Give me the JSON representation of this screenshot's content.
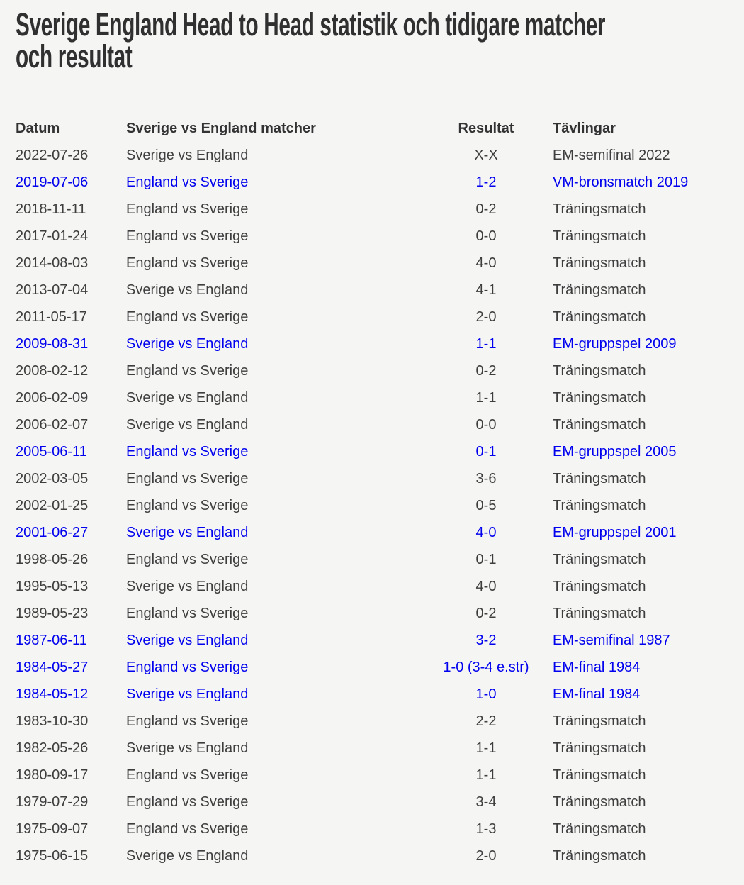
{
  "page": {
    "background_color": "#f5f5f4",
    "text_color": "#3e3e3e",
    "heading_color": "#303030",
    "link_color": "#0000ee"
  },
  "heading": {
    "line1": "Sverige England Head to Head statistik och tidigare matcher",
    "line2": "och resultat"
  },
  "table": {
    "headers": [
      "Datum",
      "Sverige vs England matcher",
      "Resultat",
      "Tävlingar"
    ],
    "rows": [
      {
        "date": "2022-07-26",
        "match": "Sverige vs England",
        "result": "X-X",
        "competition": "EM-semifinal 2022",
        "link": false
      },
      {
        "date": "2019-07-06",
        "match": "England vs Sverige",
        "result": "1-2",
        "competition": "VM-bronsmatch 2019",
        "link": true
      },
      {
        "date": "2018-11-11",
        "match": "England vs Sverige",
        "result": "0-2",
        "competition": "Träningsmatch",
        "link": false
      },
      {
        "date": "2017-01-24",
        "match": "England vs Sverige",
        "result": "0-0",
        "competition": "Träningsmatch",
        "link": false
      },
      {
        "date": "2014-08-03",
        "match": "England vs Sverige",
        "result": "4-0",
        "competition": "Träningsmatch",
        "link": false
      },
      {
        "date": "2013-07-04",
        "match": "Sverige vs England",
        "result": "4-1",
        "competition": "Träningsmatch",
        "link": false
      },
      {
        "date": "2011-05-17",
        "match": "England vs Sverige",
        "result": "2-0",
        "competition": "Träningsmatch",
        "link": false
      },
      {
        "date": "2009-08-31",
        "match": "Sverige vs England",
        "result": "1-1",
        "competition": "EM-gruppspel 2009",
        "link": true
      },
      {
        "date": "2008-02-12",
        "match": "England vs Sverige",
        "result": "0-2",
        "competition": "Träningsmatch",
        "link": false
      },
      {
        "date": "2006-02-09",
        "match": "Sverige vs England",
        "result": "1-1",
        "competition": "Träningsmatch",
        "link": false
      },
      {
        "date": "2006-02-07",
        "match": "Sverige vs England",
        "result": "0-0",
        "competition": "Träningsmatch",
        "link": false
      },
      {
        "date": "2005-06-11",
        "match": "England vs Sverige",
        "result": "0-1",
        "competition": "EM-gruppspel 2005",
        "link": true
      },
      {
        "date": "2002-03-05",
        "match": "England vs Sverige",
        "result": "3-6",
        "competition": "Träningsmatch",
        "link": false
      },
      {
        "date": "2002-01-25",
        "match": "England vs Sverige",
        "result": "0-5",
        "competition": "Träningsmatch",
        "link": false
      },
      {
        "date": "2001-06-27",
        "match": "Sverige vs England",
        "result": "4-0",
        "competition": "EM-gruppspel 2001",
        "link": true
      },
      {
        "date": "1998-05-26",
        "match": "England vs Sverige",
        "result": "0-1",
        "competition": "Träningsmatch",
        "link": false
      },
      {
        "date": "1995-05-13",
        "match": "Sverige vs England",
        "result": "4-0",
        "competition": "Träningsmatch",
        "link": false
      },
      {
        "date": "1989-05-23",
        "match": "England vs Sverige",
        "result": "0-2",
        "competition": "Träningsmatch",
        "link": false
      },
      {
        "date": "1987-06-11",
        "match": "Sverige vs England",
        "result": "3-2",
        "competition": "EM-semifinal 1987",
        "link": true
      },
      {
        "date": "1984-05-27",
        "match": "England vs Sverige",
        "result": "1-0 (3-4 e.str)",
        "competition": "EM-final 1984",
        "link": true
      },
      {
        "date": "1984-05-12",
        "match": "Sverige vs England",
        "result": "1-0",
        "competition": "EM-final 1984",
        "link": true
      },
      {
        "date": "1983-10-30",
        "match": "England vs Sverige",
        "result": "2-2",
        "competition": "Träningsmatch",
        "link": false
      },
      {
        "date": "1982-05-26",
        "match": "Sverige vs England",
        "result": "1-1",
        "competition": "Träningsmatch",
        "link": false
      },
      {
        "date": "1980-09-17",
        "match": "England vs Sverige",
        "result": "1-1",
        "competition": "Träningsmatch",
        "link": false
      },
      {
        "date": "1979-07-29",
        "match": "England vs Sverige",
        "result": "3-4",
        "competition": "Träningsmatch",
        "link": false
      },
      {
        "date": "1975-09-07",
        "match": "England vs Sverige",
        "result": "1-3",
        "competition": "Träningsmatch",
        "link": false
      },
      {
        "date": "1975-06-15",
        "match": "Sverige vs England",
        "result": "2-0",
        "competition": "Träningsmatch",
        "link": false
      }
    ]
  }
}
